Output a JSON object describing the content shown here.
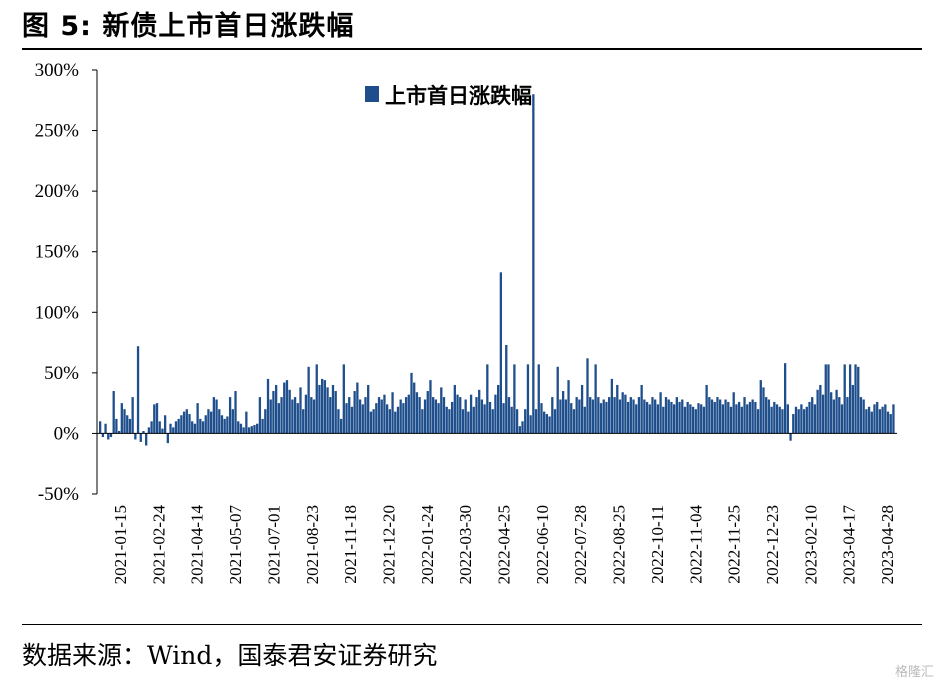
{
  "title": "图 5:  新债上市首日涨跌幅",
  "source": "数据来源：Wind，国泰君安证券研究",
  "watermark": "格隆汇",
  "colors": {
    "bar": "#1f4e8c"
  },
  "chart_data": {
    "type": "bar",
    "title": "",
    "xlabel": "",
    "ylabel": "",
    "ylim": [
      -0.5,
      3.0
    ],
    "y_ticks": [
      3.0,
      2.5,
      2.0,
      1.5,
      1.0,
      0.5,
      0.0,
      -0.5
    ],
    "y_tick_labels": [
      "300%",
      "250%",
      "200%",
      "150%",
      "100%",
      "50%",
      "0%",
      "-50%"
    ],
    "x_tick_labels": [
      "2021-01-15",
      "2021-02-24",
      "2021-04-14",
      "2021-05-07",
      "2021-07-01",
      "2021-08-23",
      "2021-11-18",
      "2021-12-20",
      "2022-01-24",
      "2022-03-30",
      "2022-04-25",
      "2022-06-10",
      "2022-07-28",
      "2022-08-25",
      "2022-10-11",
      "2022-11-04",
      "2022-11-25",
      "2022-12-23",
      "2023-02-10",
      "2023-04-17",
      "2023-04-28"
    ],
    "legend": "上市首日涨跌幅",
    "legend_position": "top-center",
    "grid": false,
    "series": [
      {
        "name": "上市首日涨跌幅",
        "values": [
          0.1,
          -0.03,
          0.08,
          -0.05,
          -0.03,
          0.35,
          0.12,
          0.02,
          0.25,
          0.2,
          0.15,
          0.12,
          0.3,
          -0.05,
          0.72,
          -0.07,
          0.02,
          -0.1,
          0.05,
          0.1,
          0.24,
          0.25,
          0.1,
          0.04,
          0.15,
          -0.08,
          0.08,
          0.05,
          0.1,
          0.12,
          0.15,
          0.18,
          0.2,
          0.16,
          0.1,
          0.08,
          0.25,
          0.12,
          0.1,
          0.15,
          0.2,
          0.18,
          0.3,
          0.28,
          0.2,
          0.15,
          0.12,
          0.14,
          0.3,
          0.2,
          0.35,
          0.1,
          0.08,
          0.05,
          0.18,
          0.05,
          0.06,
          0.07,
          0.08,
          0.3,
          0.12,
          0.2,
          0.45,
          0.28,
          0.35,
          0.4,
          0.25,
          0.3,
          0.42,
          0.44,
          0.36,
          0.28,
          0.3,
          0.25,
          0.38,
          0.2,
          0.32,
          0.55,
          0.3,
          0.28,
          0.57,
          0.4,
          0.45,
          0.44,
          0.38,
          0.3,
          0.4,
          0.35,
          0.2,
          0.12,
          0.57,
          0.25,
          0.3,
          0.22,
          0.35,
          0.42,
          0.28,
          0.24,
          0.3,
          0.4,
          0.18,
          0.2,
          0.25,
          0.3,
          0.28,
          0.32,
          0.24,
          0.2,
          0.34,
          0.18,
          0.22,
          0.28,
          0.25,
          0.3,
          0.32,
          0.5,
          0.42,
          0.34,
          0.3,
          0.2,
          0.28,
          0.35,
          0.44,
          0.3,
          0.28,
          0.25,
          0.38,
          0.3,
          0.22,
          0.2,
          0.26,
          0.4,
          0.32,
          0.3,
          0.2,
          0.28,
          0.18,
          0.32,
          0.22,
          0.3,
          0.36,
          0.28,
          0.24,
          0.57,
          0.26,
          0.2,
          0.32,
          0.4,
          1.33,
          0.25,
          0.73,
          0.3,
          0.22,
          0.57,
          0.2,
          0.06,
          0.1,
          0.2,
          0.57,
          0.15,
          2.8,
          0.2,
          0.57,
          0.25,
          0.18,
          0.16,
          0.14,
          0.3,
          0.2,
          0.55,
          0.28,
          0.35,
          0.28,
          0.44,
          0.25,
          0.2,
          0.3,
          0.28,
          0.4,
          0.22,
          0.62,
          0.3,
          0.28,
          0.57,
          0.3,
          0.25,
          0.28,
          0.26,
          0.3,
          0.45,
          0.3,
          0.4,
          0.28,
          0.34,
          0.32,
          0.26,
          0.3,
          0.28,
          0.24,
          0.3,
          0.4,
          0.28,
          0.26,
          0.24,
          0.3,
          0.28,
          0.24,
          0.34,
          0.22,
          0.3,
          0.28,
          0.26,
          0.24,
          0.3,
          0.26,
          0.28,
          0.22,
          0.26,
          0.24,
          0.22,
          0.2,
          0.25,
          0.24,
          0.22,
          0.4,
          0.3,
          0.28,
          0.26,
          0.3,
          0.28,
          0.24,
          0.28,
          0.26,
          0.22,
          0.34,
          0.24,
          0.26,
          0.22,
          0.3,
          0.24,
          0.26,
          0.28,
          0.26,
          0.2,
          0.44,
          0.38,
          0.3,
          0.28,
          0.22,
          0.26,
          0.24,
          0.22,
          0.2,
          0.58,
          0.24,
          -0.06,
          0.16,
          0.22,
          0.2,
          0.24,
          0.2,
          0.22,
          0.26,
          0.3,
          0.24,
          0.36,
          0.4,
          0.32,
          0.57,
          0.57,
          0.34,
          0.28,
          0.36,
          0.3,
          0.24,
          0.57,
          0.3,
          0.57,
          0.4,
          0.57,
          0.55,
          0.3,
          0.28,
          0.2,
          0.22,
          0.18,
          0.24,
          0.26,
          0.2,
          0.22,
          0.24,
          0.18,
          0.16,
          0.24
        ]
      }
    ]
  }
}
